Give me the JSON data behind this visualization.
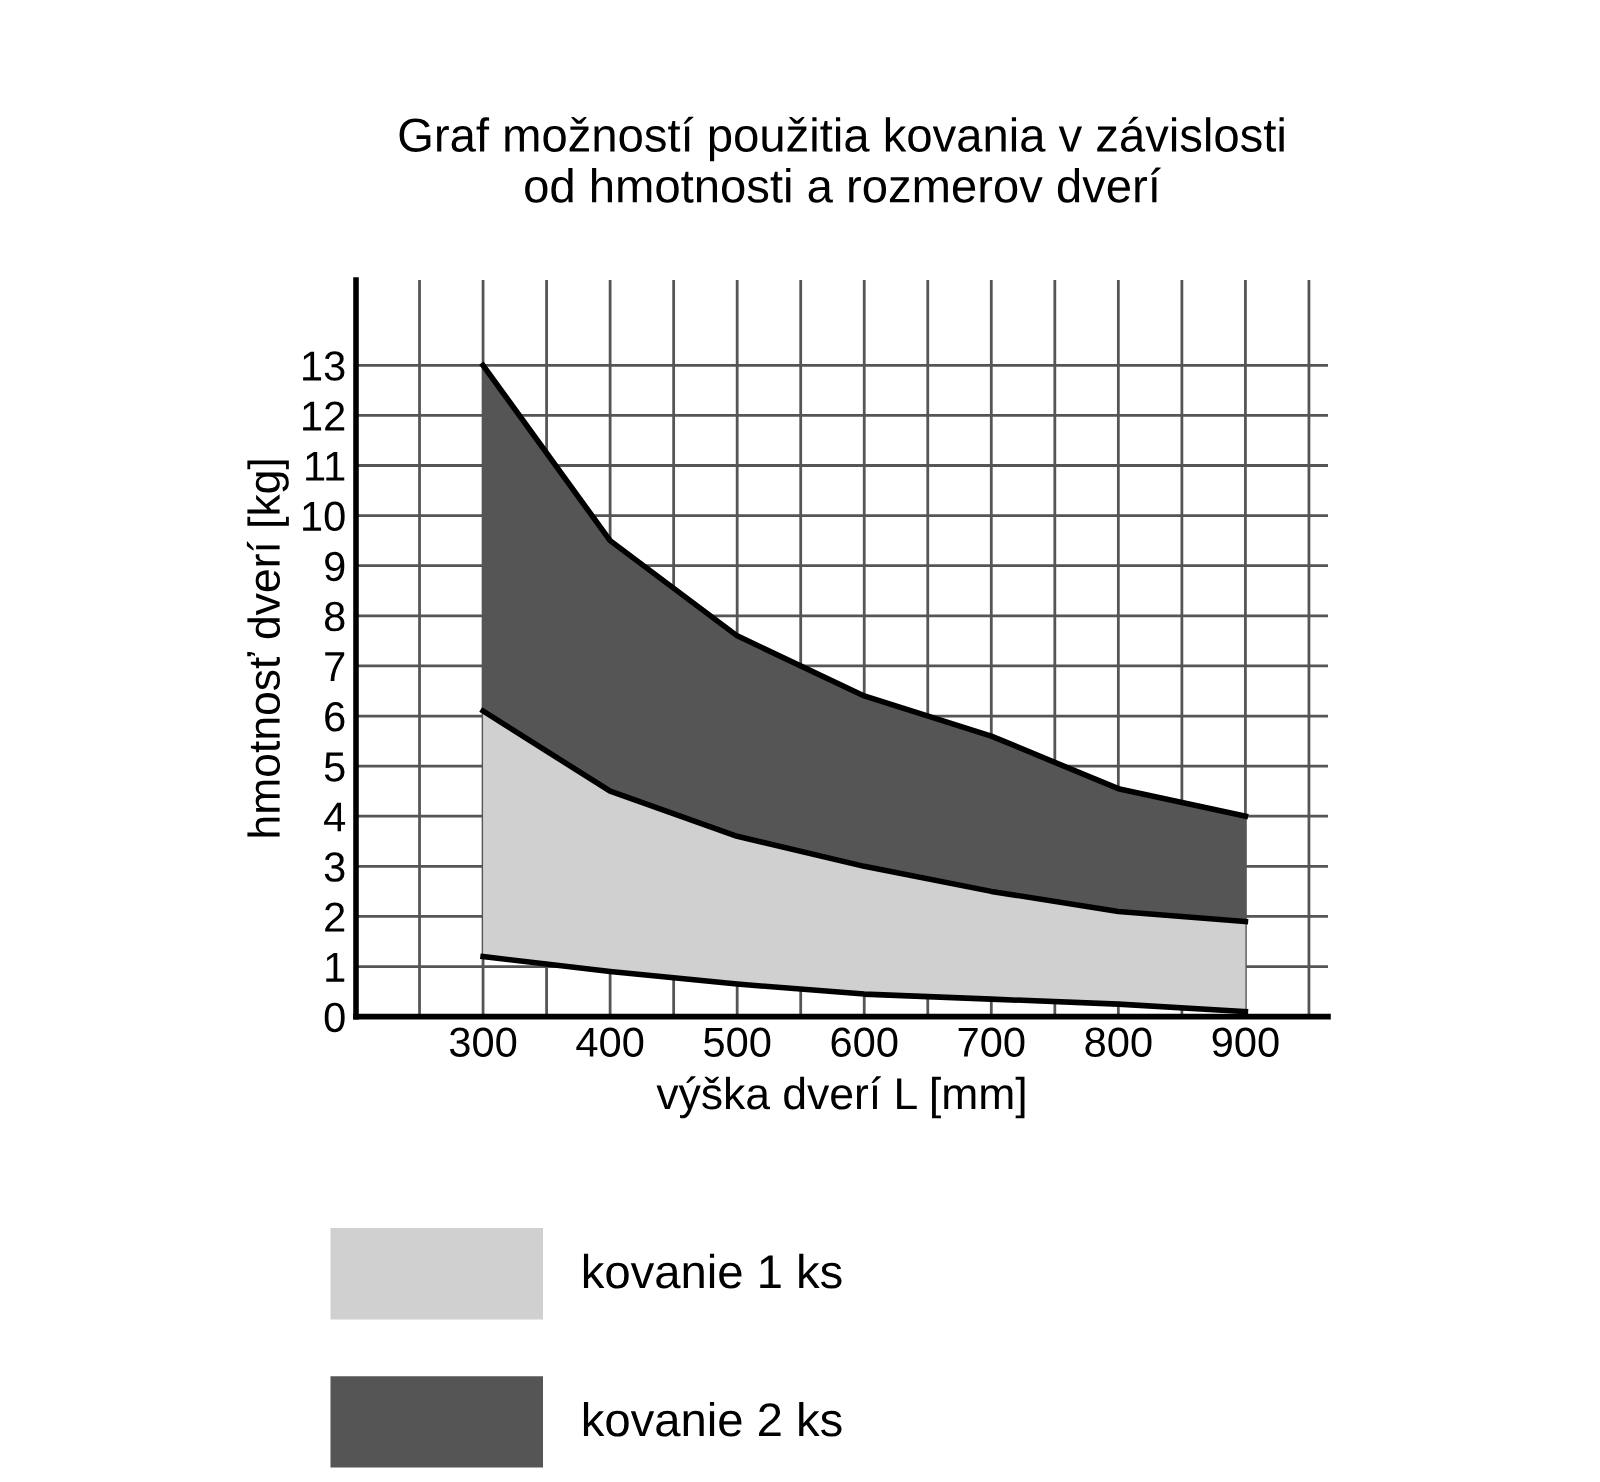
{
  "chart_data": {
    "type": "area",
    "title": "Graf možností použitia kovania v závislosti\nod hmotnosti a rozmerov dverí",
    "xlabel": "výška dverí L [mm]",
    "ylabel": "hmotnosť dverí [kg]",
    "x": [
      300,
      400,
      500,
      600,
      700,
      800,
      900
    ],
    "series": [
      {
        "type": "line",
        "color": "#000000",
        "values": [
          1.2,
          0.9,
          0.65,
          0.45,
          0.35,
          0.25,
          0.1
        ]
      },
      {
        "name": "kovanie 1 ks",
        "color": "#d0d0d0",
        "values": [
          6.1,
          4.5,
          3.6,
          3.0,
          2.5,
          2.1,
          1.9
        ]
      },
      {
        "name": "kovanie 2 ks",
        "color": "#555555",
        "values": [
          13,
          9.5,
          7.6,
          6.4,
          5.6,
          4.55,
          4.0
        ]
      }
    ],
    "xlim": [
      200,
      965
    ],
    "ylim": [
      0,
      14.7
    ],
    "xticks": [
      {
        "value": 250,
        "label": null
      },
      300,
      {
        "value": 350,
        "label": null
      },
      400,
      {
        "value": 450,
        "label": null
      },
      500,
      {
        "value": 550,
        "label": null
      },
      600,
      {
        "value": 650,
        "label": null
      },
      700,
      {
        "value": 750,
        "label": null
      },
      800,
      {
        "value": 850,
        "label": null
      },
      900,
      {
        "value": 950,
        "label": null
      }
    ],
    "yticks": [
      0,
      1,
      2,
      3,
      4,
      5,
      6,
      7,
      8,
      9,
      10,
      11,
      12,
      13
    ],
    "grid": true,
    "legend": "bottom"
  }
}
